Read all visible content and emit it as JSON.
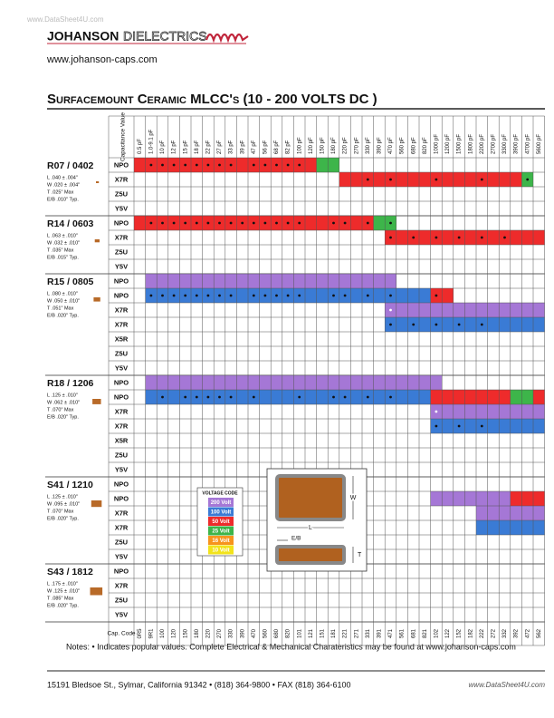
{
  "watermark": "www.DataSheet4U.com",
  "logo": {
    "brand": "JOHANSON",
    "word": "DIELECTRICS"
  },
  "website": "www.johanson-caps.com",
  "title": "Surfacemount Ceramic MLCC's (10 - 200 VOLTS DC )",
  "table": {
    "header_label": "Capacitance Value",
    "code_label": "Cap. Code",
    "columns": [
      "0.5 pF",
      "1.0-9.1 pF",
      "10 pF",
      "12 pF",
      "15 pF",
      "18 pF",
      "22 pF",
      "27 pF",
      "33 pF",
      "39 pF",
      "47 pF",
      "56 pF",
      "68 pF",
      "82 pF",
      "100 pF",
      "120 pF",
      "150 pF",
      "180 pF",
      "220 pF",
      "270 pF",
      "330 pF",
      "390 pF",
      "470 pF",
      "560 pF",
      "680 pF",
      "820 pF",
      "1000 pF",
      "1200 pF",
      "1500 pF",
      "1800 pF",
      "2200 pF",
      "2700 pF",
      "3300 pF",
      "3900 pF",
      "4700 pF",
      "5600 pF"
    ],
    "codes": [
      "0R5",
      "9R1",
      "100",
      "120",
      "150",
      "180",
      "220",
      "270",
      "330",
      "390",
      "470",
      "560",
      "680",
      "820",
      "101",
      "121",
      "151",
      "181",
      "221",
      "271",
      "331",
      "391",
      "471",
      "561",
      "681",
      "821",
      "102",
      "122",
      "152",
      "182",
      "222",
      "272",
      "332",
      "392",
      "472",
      "562"
    ],
    "groups": [
      {
        "name": "R07 / 0402",
        "dims": [
          "L   .040 ± .004\"",
          "W  .020 ± .004\"",
          "T    .025\"   Max",
          "E/B .010\"   Typ."
        ],
        "rows": [
          {
            "dielectric": "NPO",
            "segments": [
              [
                0,
                15,
                2
              ],
              [
                16,
                17,
                3
              ]
            ],
            "dots": [
              1,
              2,
              3,
              4,
              5,
              6,
              7,
              8,
              10,
              11,
              12,
              13,
              14
            ]
          },
          {
            "dielectric": "X7R",
            "segments": [
              [
                18,
                33,
                2
              ],
              [
                34,
                34,
                3
              ]
            ],
            "dots": [
              20,
              22,
              26,
              30,
              34
            ]
          },
          {
            "dielectric": "Z5U",
            "segments": [],
            "dots": []
          },
          {
            "dielectric": "Y5V",
            "segments": [],
            "dots": []
          }
        ]
      },
      {
        "name": "R14 / 0603",
        "dims": [
          "L   .063 ± .010\"",
          "W  .032 ± .010\"",
          "T    .035\"   Max",
          "E/B .015\"   Typ."
        ],
        "rows": [
          {
            "dielectric": "NPO",
            "segments": [
              [
                0,
                20,
                2
              ],
              [
                21,
                22,
                3
              ]
            ],
            "dots": [
              1,
              2,
              3,
              4,
              5,
              6,
              7,
              8,
              9,
              10,
              11,
              12,
              13,
              14,
              17,
              18,
              20,
              22
            ]
          },
          {
            "dielectric": "X7R",
            "segments": [
              [
                22,
                35,
                2
              ]
            ],
            "dots": [
              22,
              24,
              26,
              28,
              30,
              32
            ]
          },
          {
            "dielectric": "Z5U",
            "segments": [],
            "dots": []
          },
          {
            "dielectric": "Y5V",
            "segments": [],
            "dots": []
          }
        ]
      },
      {
        "name": "R15 / 0805",
        "dims": [
          "L   .080 ± .010\"",
          "W  .050 ± .010\"",
          "T    .051\"   Max",
          "E/B .020\"   Typ."
        ],
        "rows": [
          {
            "dielectric": "NPO",
            "segments": [
              [
                1,
                22,
                0
              ]
            ],
            "dots": []
          },
          {
            "dielectric": "NPO",
            "segments": [
              [
                1,
                25,
                1
              ],
              [
                26,
                27,
                2
              ]
            ],
            "dots": [
              1,
              2,
              3,
              4,
              5,
              6,
              7,
              8,
              10,
              11,
              12,
              13,
              14,
              17,
              18,
              20,
              22,
              26
            ]
          },
          {
            "dielectric": "X7R",
            "segments": [
              [
                22,
                35,
                0
              ]
            ],
            "dots": [
              22
            ]
          },
          {
            "dielectric": "X7R",
            "segments": [
              [
                22,
                35,
                1
              ]
            ],
            "dots": [
              22,
              24,
              26,
              28,
              30
            ]
          },
          {
            "dielectric": "X5R",
            "segments": [],
            "dots": []
          },
          {
            "dielectric": "Z5U",
            "segments": [],
            "dots": []
          },
          {
            "dielectric": "Y5V",
            "segments": [],
            "dots": []
          }
        ]
      },
      {
        "name": "R18 / 1206",
        "dims": [
          "L   .125 ± .010\"",
          "W  .062 ± .010\"",
          "T    .070\"   Max",
          "E/B .020\"   Typ."
        ],
        "rows": [
          {
            "dielectric": "NPO",
            "segments": [
              [
                1,
                26,
                0
              ]
            ],
            "dots": []
          },
          {
            "dielectric": "NPO",
            "segments": [
              [
                1,
                25,
                1
              ],
              [
                26,
                32,
                2
              ],
              [
                33,
                34,
                3
              ],
              [
                35,
                35,
                2
              ]
            ],
            "dots": [
              2,
              4,
              5,
              6,
              7,
              8,
              10,
              14,
              17,
              18,
              20,
              22
            ]
          },
          {
            "dielectric": "X7R",
            "segments": [
              [
                26,
                35,
                0
              ]
            ],
            "dots": [
              26
            ]
          },
          {
            "dielectric": "X7R",
            "segments": [
              [
                26,
                35,
                1
              ]
            ],
            "dots": [
              26,
              28,
              30
            ]
          },
          {
            "dielectric": "X5R",
            "segments": [],
            "dots": []
          },
          {
            "dielectric": "Z5U",
            "segments": [],
            "dots": []
          },
          {
            "dielectric": "Y5V",
            "segments": [],
            "dots": []
          }
        ]
      },
      {
        "name": "S41 / 1210",
        "dims": [
          "L   .125 ± .010\"",
          "W  .095 ± .010\"",
          "T    .070\"   Max",
          "E/B .020\"   Typ."
        ],
        "rows": [
          {
            "dielectric": "NPO",
            "segments": [],
            "dots": []
          },
          {
            "dielectric": "NPO",
            "segments": [
              [
                26,
                32,
                0
              ],
              [
                33,
                35,
                2
              ]
            ],
            "dots": []
          },
          {
            "dielectric": "X7R",
            "segments": [
              [
                30,
                35,
                0
              ]
            ],
            "dots": []
          },
          {
            "dielectric": "X7R",
            "segments": [
              [
                30,
                35,
                1
              ]
            ],
            "dots": []
          },
          {
            "dielectric": "Z5U",
            "segments": [],
            "dots": []
          },
          {
            "dielectric": "Y5V",
            "segments": [],
            "dots": []
          }
        ]
      },
      {
        "name": "S43 / 1812",
        "dims": [
          "L   .175 ± .010\"",
          "W  .125 ± .010\"",
          "T    .085\"   Max",
          "E/B .020\"   Typ."
        ],
        "rows": [
          {
            "dielectric": "NPO",
            "segments": [],
            "dots": []
          },
          {
            "dielectric": "X7R",
            "segments": [],
            "dots": []
          },
          {
            "dielectric": "Z5U",
            "segments": [],
            "dots": []
          },
          {
            "dielectric": "Y5V",
            "segments": [],
            "dots": []
          }
        ]
      }
    ]
  },
  "voltage_code": {
    "title": "VOLTAGE CODE",
    "entries": [
      {
        "label": "200 Volt",
        "color": "#a577d6"
      },
      {
        "label": "100 Volt",
        "color": "#3a7bd5"
      },
      {
        "label": "50 Volt",
        "color": "#ee2b2b"
      },
      {
        "label": "25 Volt",
        "color": "#3db54a"
      },
      {
        "label": "16 Volt",
        "color": "#f7941d"
      },
      {
        "label": "10 Volt",
        "color": "#f2e31b"
      }
    ]
  },
  "diagram": {
    "w": "W",
    "l": "L",
    "eb": "E/B",
    "t": "T"
  },
  "notes": "Notes: • Indicates popular values.   Complete Electrical & Mechanical Charateristics may be found at www.johanson-caps.com",
  "footer": {
    "address": "15191 Bledsoe St., Sylmar, California  91342  •  (818) 364-9800  •  FAX (818) 364-6100",
    "watermark": "www.DataSheet4U.com"
  }
}
